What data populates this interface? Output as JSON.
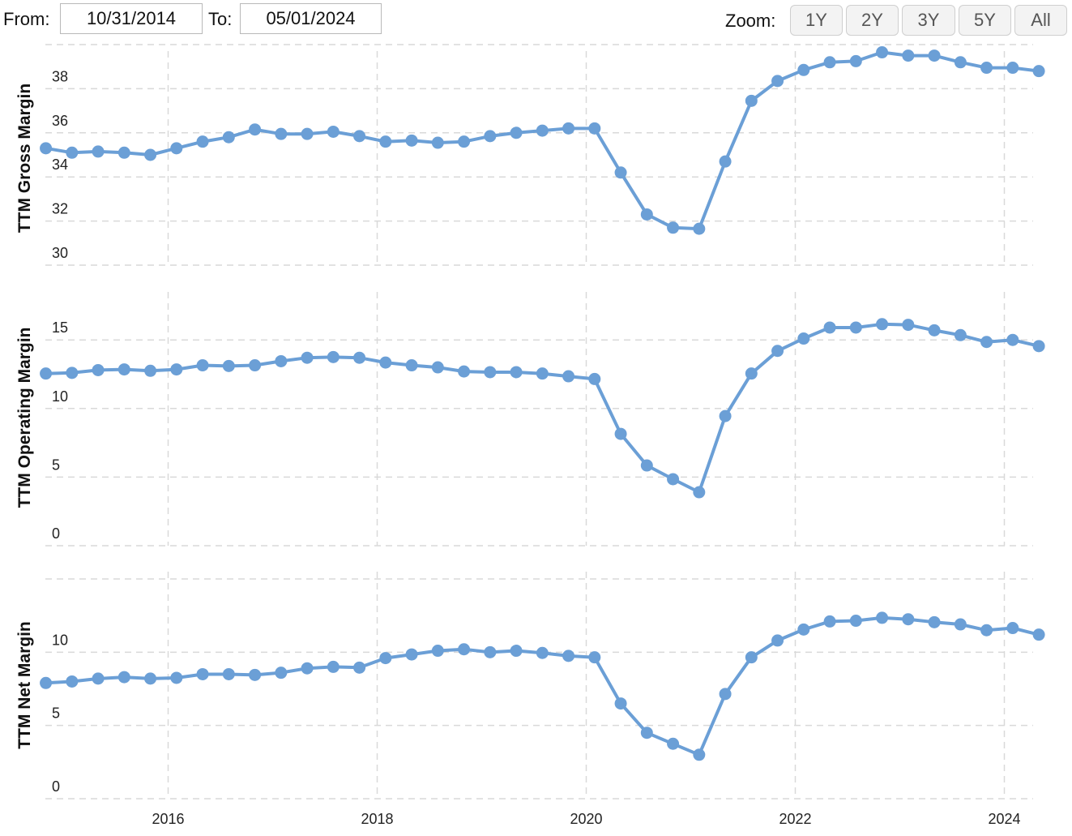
{
  "controls": {
    "from_label": "From:",
    "from_value": "10/31/2014",
    "to_label": "To:",
    "to_value": "05/01/2024",
    "zoom_label": "Zoom:",
    "zoom_buttons": [
      "1Y",
      "2Y",
      "3Y",
      "5Y",
      "All"
    ]
  },
  "colors": {
    "series": "#6b9fd6",
    "grid": "#d9d9d9"
  },
  "chart_data": {
    "type": "line",
    "x_axis": {
      "ticks": [
        "2016",
        "2018",
        "2020",
        "2022",
        "2024"
      ],
      "range": [
        2014.83,
        2024.33
      ]
    },
    "x": [
      2014.83,
      2015.08,
      2015.33,
      2015.58,
      2015.83,
      2016.08,
      2016.33,
      2016.58,
      2016.83,
      2017.08,
      2017.33,
      2017.58,
      2017.83,
      2018.08,
      2018.33,
      2018.58,
      2018.83,
      2019.08,
      2019.33,
      2019.58,
      2019.83,
      2020.08,
      2020.33,
      2020.58,
      2020.83,
      2021.08,
      2021.33,
      2021.58,
      2021.83,
      2022.08,
      2022.33,
      2022.58,
      2022.83,
      2023.08,
      2023.33,
      2023.58,
      2023.83,
      2024.08,
      2024.33
    ],
    "panels": [
      {
        "ylabel": "TTM Gross Margin",
        "yticks": [
          "30",
          "32",
          "34",
          "36",
          "38"
        ],
        "ylim": [
          30,
          40
        ],
        "values": [
          35.3,
          35.1,
          35.15,
          35.1,
          35.0,
          35.3,
          35.6,
          35.8,
          36.15,
          35.95,
          35.95,
          36.05,
          35.85,
          35.6,
          35.65,
          35.55,
          35.6,
          35.85,
          36.0,
          36.1,
          36.2,
          36.2,
          34.2,
          32.3,
          31.7,
          31.65,
          34.7,
          37.45,
          38.35,
          38.85,
          39.2,
          39.25,
          39.65,
          39.5,
          39.5,
          39.2,
          38.95,
          38.95,
          38.8
        ]
      },
      {
        "ylabel": "TTM Operating Margin",
        "yticks": [
          "0",
          "5",
          "10",
          "15"
        ],
        "ylim": [
          0,
          18.5
        ],
        "values": [
          12.55,
          12.6,
          12.8,
          12.85,
          12.75,
          12.85,
          13.15,
          13.1,
          13.15,
          13.45,
          13.7,
          13.75,
          13.7,
          13.35,
          13.15,
          13.0,
          12.7,
          12.65,
          12.65,
          12.55,
          12.35,
          12.15,
          8.15,
          5.85,
          4.85,
          3.9,
          9.45,
          12.55,
          14.2,
          15.1,
          15.9,
          15.9,
          16.15,
          16.1,
          15.7,
          15.35,
          14.85,
          15.0,
          14.55
        ]
      },
      {
        "ylabel": "TTM Net Margin",
        "yticks": [
          "0",
          "5",
          "10"
        ],
        "ylim": [
          0,
          15.5
        ],
        "values": [
          7.9,
          8.0,
          8.2,
          8.3,
          8.2,
          8.25,
          8.5,
          8.5,
          8.45,
          8.6,
          8.9,
          9.0,
          8.95,
          9.6,
          9.85,
          10.1,
          10.2,
          10.0,
          10.1,
          9.95,
          9.75,
          9.65,
          6.5,
          4.5,
          3.75,
          3.0,
          7.15,
          9.65,
          10.8,
          11.55,
          12.1,
          12.15,
          12.35,
          12.25,
          12.05,
          11.9,
          11.5,
          11.65,
          11.2
        ]
      }
    ]
  }
}
